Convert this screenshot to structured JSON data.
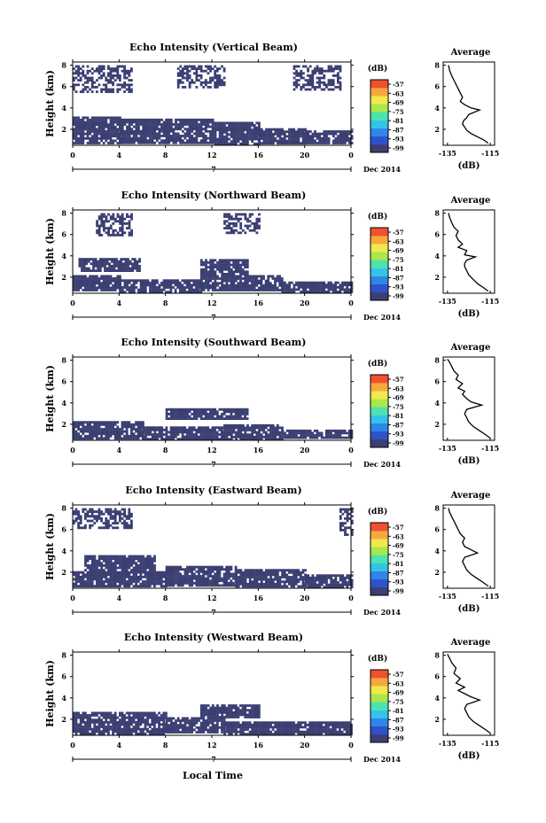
{
  "colors": {
    "background": "#ffffff",
    "echo": "#3b3f72",
    "axis": "#000000",
    "colorbar": [
      "#3b3f72",
      "#2f52c8",
      "#2f86e8",
      "#34c3e8",
      "#4ce3b0",
      "#a8e84c",
      "#f0e84c",
      "#f7a83c",
      "#ef5030"
    ]
  },
  "figure": {
    "xlabel": "Local Time",
    "date_label": "Dec 2014",
    "day_label": "7",
    "x_ticks": [
      "0",
      "4",
      "8",
      "12",
      "16",
      "20",
      "0"
    ],
    "y_ticks": [
      "2",
      "4",
      "6",
      "8"
    ],
    "ylabel": "Height (km)",
    "colorbar_unit": "(dB)",
    "colorbar_ticks": [
      "-57",
      "-63",
      "-69",
      "-75",
      "-81",
      "-87",
      "-93",
      "-99"
    ],
    "average_title": "Average",
    "average_xlabel": "(dB)",
    "average_y_ticks": [
      "2",
      "4",
      "6",
      "8"
    ]
  },
  "chart_data": [
    {
      "type": "heatmap",
      "title": "Echo Intensity (Vertical Beam)",
      "xlabel": "Local Time",
      "ylabel": "Height (km)",
      "xlim": [
        0,
        24
      ],
      "ylim": [
        0.5,
        8.3
      ],
      "colorbar": {
        "label": "(dB)",
        "ticks": [
          -57,
          -63,
          -69,
          -75,
          -81,
          -87,
          -93,
          -99
        ]
      },
      "echo_regions_km": [
        {
          "t": [
            0,
            4
          ],
          "h": [
            0.7,
            3.2
          ]
        },
        {
          "t": [
            4,
            8
          ],
          "h": [
            0.7,
            3.0
          ]
        },
        {
          "t": [
            8,
            12
          ],
          "h": [
            0.7,
            3.0
          ]
        },
        {
          "t": [
            12,
            16
          ],
          "h": [
            0.7,
            2.7
          ]
        },
        {
          "t": [
            16,
            20
          ],
          "h": [
            0.7,
            2.1
          ]
        },
        {
          "t": [
            20,
            24
          ],
          "h": [
            0.7,
            1.9
          ]
        },
        {
          "t": [
            0,
            5
          ],
          "h": [
            5.6,
            8.0
          ]
        },
        {
          "t": [
            9,
            13
          ],
          "h": [
            6.0,
            8.0
          ]
        },
        {
          "t": [
            19,
            23
          ],
          "h": [
            5.8,
            8.0
          ]
        }
      ],
      "average": {
        "title": "Average",
        "xlabel": "(dB)",
        "x_ticks": [
          -135,
          -115
        ],
        "xlim": [
          -137,
          -113
        ],
        "ylim": [
          0.5,
          8.3
        ],
        "x": [
          -116,
          -118,
          -121,
          -124,
          -126,
          -127,
          -128,
          -127.5,
          -126,
          -125,
          -120,
          -124,
          -127,
          -129,
          -128,
          -129,
          -130,
          -131,
          -132,
          -133,
          -134,
          -134.5
        ],
        "y": [
          0.7,
          1.0,
          1.3,
          1.6,
          1.9,
          2.2,
          2.5,
          2.8,
          3.1,
          3.4,
          3.8,
          4.0,
          4.3,
          4.6,
          5.0,
          5.4,
          5.8,
          6.2,
          6.6,
          7.0,
          7.5,
          8.0
        ]
      }
    },
    {
      "type": "heatmap",
      "title": "Echo Intensity (Northward Beam)",
      "xlabel": "Local Time",
      "ylabel": "Height (km)",
      "xlim": [
        0,
        24
      ],
      "ylim": [
        0.5,
        8.3
      ],
      "colorbar": {
        "label": "(dB)",
        "ticks": [
          -57,
          -63,
          -69,
          -75,
          -81,
          -87,
          -93,
          -99
        ]
      },
      "echo_regions_km": [
        {
          "t": [
            0,
            4
          ],
          "h": [
            0.7,
            2.2
          ]
        },
        {
          "t": [
            0.5,
            5.8
          ],
          "h": [
            2.6,
            3.8
          ]
        },
        {
          "t": [
            4,
            11
          ],
          "h": [
            0.7,
            1.8
          ]
        },
        {
          "t": [
            11,
            15
          ],
          "h": [
            2.4,
            3.7
          ]
        },
        {
          "t": [
            11,
            18
          ],
          "h": [
            0.7,
            2.2
          ]
        },
        {
          "t": [
            18,
            24
          ],
          "h": [
            0.7,
            1.6
          ]
        },
        {
          "t": [
            2,
            5
          ],
          "h": [
            6.0,
            8.0
          ]
        },
        {
          "t": [
            13,
            16
          ],
          "h": [
            6.2,
            8.0
          ]
        }
      ],
      "average": {
        "title": "Average",
        "xlabel": "(dB)",
        "x_ticks": [
          -135,
          -115
        ],
        "xlim": [
          -137,
          -113
        ],
        "ylim": [
          0.5,
          8.3
        ],
        "x": [
          -116,
          -118,
          -121,
          -123,
          -125,
          -126,
          -127,
          -127,
          -126,
          -122,
          -127,
          -126,
          -130,
          -128,
          -130,
          -131,
          -130,
          -132,
          -133,
          -134,
          -134.5
        ],
        "y": [
          0.7,
          1.0,
          1.4,
          1.8,
          2.2,
          2.6,
          3.0,
          3.3,
          3.6,
          3.9,
          4.1,
          4.5,
          4.8,
          5.1,
          5.5,
          5.9,
          6.3,
          6.7,
          7.1,
          7.6,
          8.0
        ]
      }
    },
    {
      "type": "heatmap",
      "title": "Echo Intensity (Southward Beam)",
      "xlabel": "Local Time",
      "ylabel": "Height (km)",
      "xlim": [
        0,
        24
      ],
      "ylim": [
        0.5,
        8.3
      ],
      "colorbar": {
        "label": "(dB)",
        "ticks": [
          -57,
          -63,
          -69,
          -75,
          -81,
          -87,
          -93,
          -99
        ]
      },
      "echo_regions_km": [
        {
          "t": [
            0,
            6
          ],
          "h": [
            0.7,
            2.3
          ]
        },
        {
          "t": [
            6,
            13
          ],
          "h": [
            0.7,
            1.8
          ]
        },
        {
          "t": [
            8,
            15
          ],
          "h": [
            2.5,
            3.5
          ]
        },
        {
          "t": [
            13,
            18
          ],
          "h": [
            0.7,
            2.0
          ]
        },
        {
          "t": [
            18,
            24
          ],
          "h": [
            0.7,
            1.5
          ]
        }
      ],
      "average": {
        "title": "Average",
        "xlabel": "(dB)",
        "x_ticks": [
          -135,
          -115
        ],
        "xlim": [
          -137,
          -113
        ],
        "ylim": [
          0.5,
          8.3
        ],
        "x": [
          -115,
          -117,
          -120,
          -123,
          -125,
          -126,
          -127,
          -126,
          -119,
          -124,
          -126,
          -128,
          -127,
          -130,
          -128,
          -131,
          -130,
          -132,
          -133,
          -134,
          -135
        ],
        "y": [
          0.7,
          1.0,
          1.4,
          1.8,
          2.2,
          2.6,
          3.0,
          3.4,
          3.8,
          4.1,
          4.4,
          4.8,
          5.1,
          5.4,
          5.8,
          6.2,
          6.6,
          7.0,
          7.4,
          7.8,
          8.1
        ]
      }
    },
    {
      "type": "heatmap",
      "title": "Echo Intensity (Eastward Beam)",
      "xlabel": "Local Time",
      "ylabel": "Height (km)",
      "xlim": [
        0,
        24
      ],
      "ylim": [
        0.5,
        8.3
      ],
      "colorbar": {
        "label": "(dB)",
        "ticks": [
          -57,
          -63,
          -69,
          -75,
          -81,
          -87,
          -93,
          -99
        ]
      },
      "echo_regions_km": [
        {
          "t": [
            0,
            8
          ],
          "h": [
            0.7,
            2.1
          ]
        },
        {
          "t": [
            1,
            7
          ],
          "h": [
            2.2,
            3.6
          ]
        },
        {
          "t": [
            8,
            14
          ],
          "h": [
            0.7,
            2.6
          ]
        },
        {
          "t": [
            14,
            20
          ],
          "h": [
            0.7,
            2.3
          ]
        },
        {
          "t": [
            20,
            24
          ],
          "h": [
            0.7,
            1.8
          ]
        },
        {
          "t": [
            0,
            5
          ],
          "h": [
            6.2,
            8.0
          ]
        },
        {
          "t": [
            23,
            24
          ],
          "h": [
            5.5,
            8.0
          ]
        }
      ],
      "average": {
        "title": "Average",
        "xlabel": "(dB)",
        "x_ticks": [
          -135,
          -115
        ],
        "xlim": [
          -137,
          -113
        ],
        "ylim": [
          0.5,
          8.3
        ],
        "x": [
          -116,
          -118,
          -121,
          -124,
          -126,
          -127,
          -128,
          -127,
          -121,
          -124,
          -127,
          -128,
          -127,
          -129,
          -130,
          -131,
          -132,
          -133,
          -134,
          -134.5
        ],
        "y": [
          0.7,
          1.0,
          1.4,
          1.8,
          2.2,
          2.6,
          3.0,
          3.4,
          3.8,
          4.1,
          4.4,
          4.8,
          5.2,
          5.6,
          6.0,
          6.4,
          6.8,
          7.2,
          7.6,
          8.0
        ]
      }
    },
    {
      "type": "heatmap",
      "title": "Echo Intensity (Westward Beam)",
      "xlabel": "Local Time",
      "ylabel": "Height (km)",
      "xlim": [
        0,
        24
      ],
      "ylim": [
        0.5,
        8.3
      ],
      "colorbar": {
        "label": "(dB)",
        "ticks": [
          -57,
          -63,
          -69,
          -75,
          -81,
          -87,
          -93,
          -99
        ]
      },
      "echo_regions_km": [
        {
          "t": [
            0,
            8
          ],
          "h": [
            0.7,
            2.7
          ]
        },
        {
          "t": [
            8,
            13
          ],
          "h": [
            0.7,
            2.2
          ]
        },
        {
          "t": [
            11,
            16
          ],
          "h": [
            2.2,
            3.4
          ]
        },
        {
          "t": [
            13,
            24
          ],
          "h": [
            0.7,
            1.8
          ]
        }
      ],
      "average": {
        "title": "Average",
        "xlabel": "(dB)",
        "x_ticks": [
          -135,
          -115
        ],
        "xlim": [
          -137,
          -113
        ],
        "ylim": [
          0.5,
          8.3
        ],
        "x": [
          -115,
          -117,
          -120,
          -123,
          -125,
          -126,
          -127,
          -126,
          -120,
          -124,
          -127,
          -130,
          -127,
          -131,
          -129,
          -132,
          -131,
          -133,
          -134,
          -135
        ],
        "y": [
          0.7,
          1.0,
          1.4,
          1.8,
          2.2,
          2.6,
          3.0,
          3.4,
          3.8,
          4.1,
          4.4,
          4.7,
          5.0,
          5.4,
          5.8,
          6.3,
          6.8,
          7.3,
          7.7,
          8.1
        ]
      }
    }
  ]
}
